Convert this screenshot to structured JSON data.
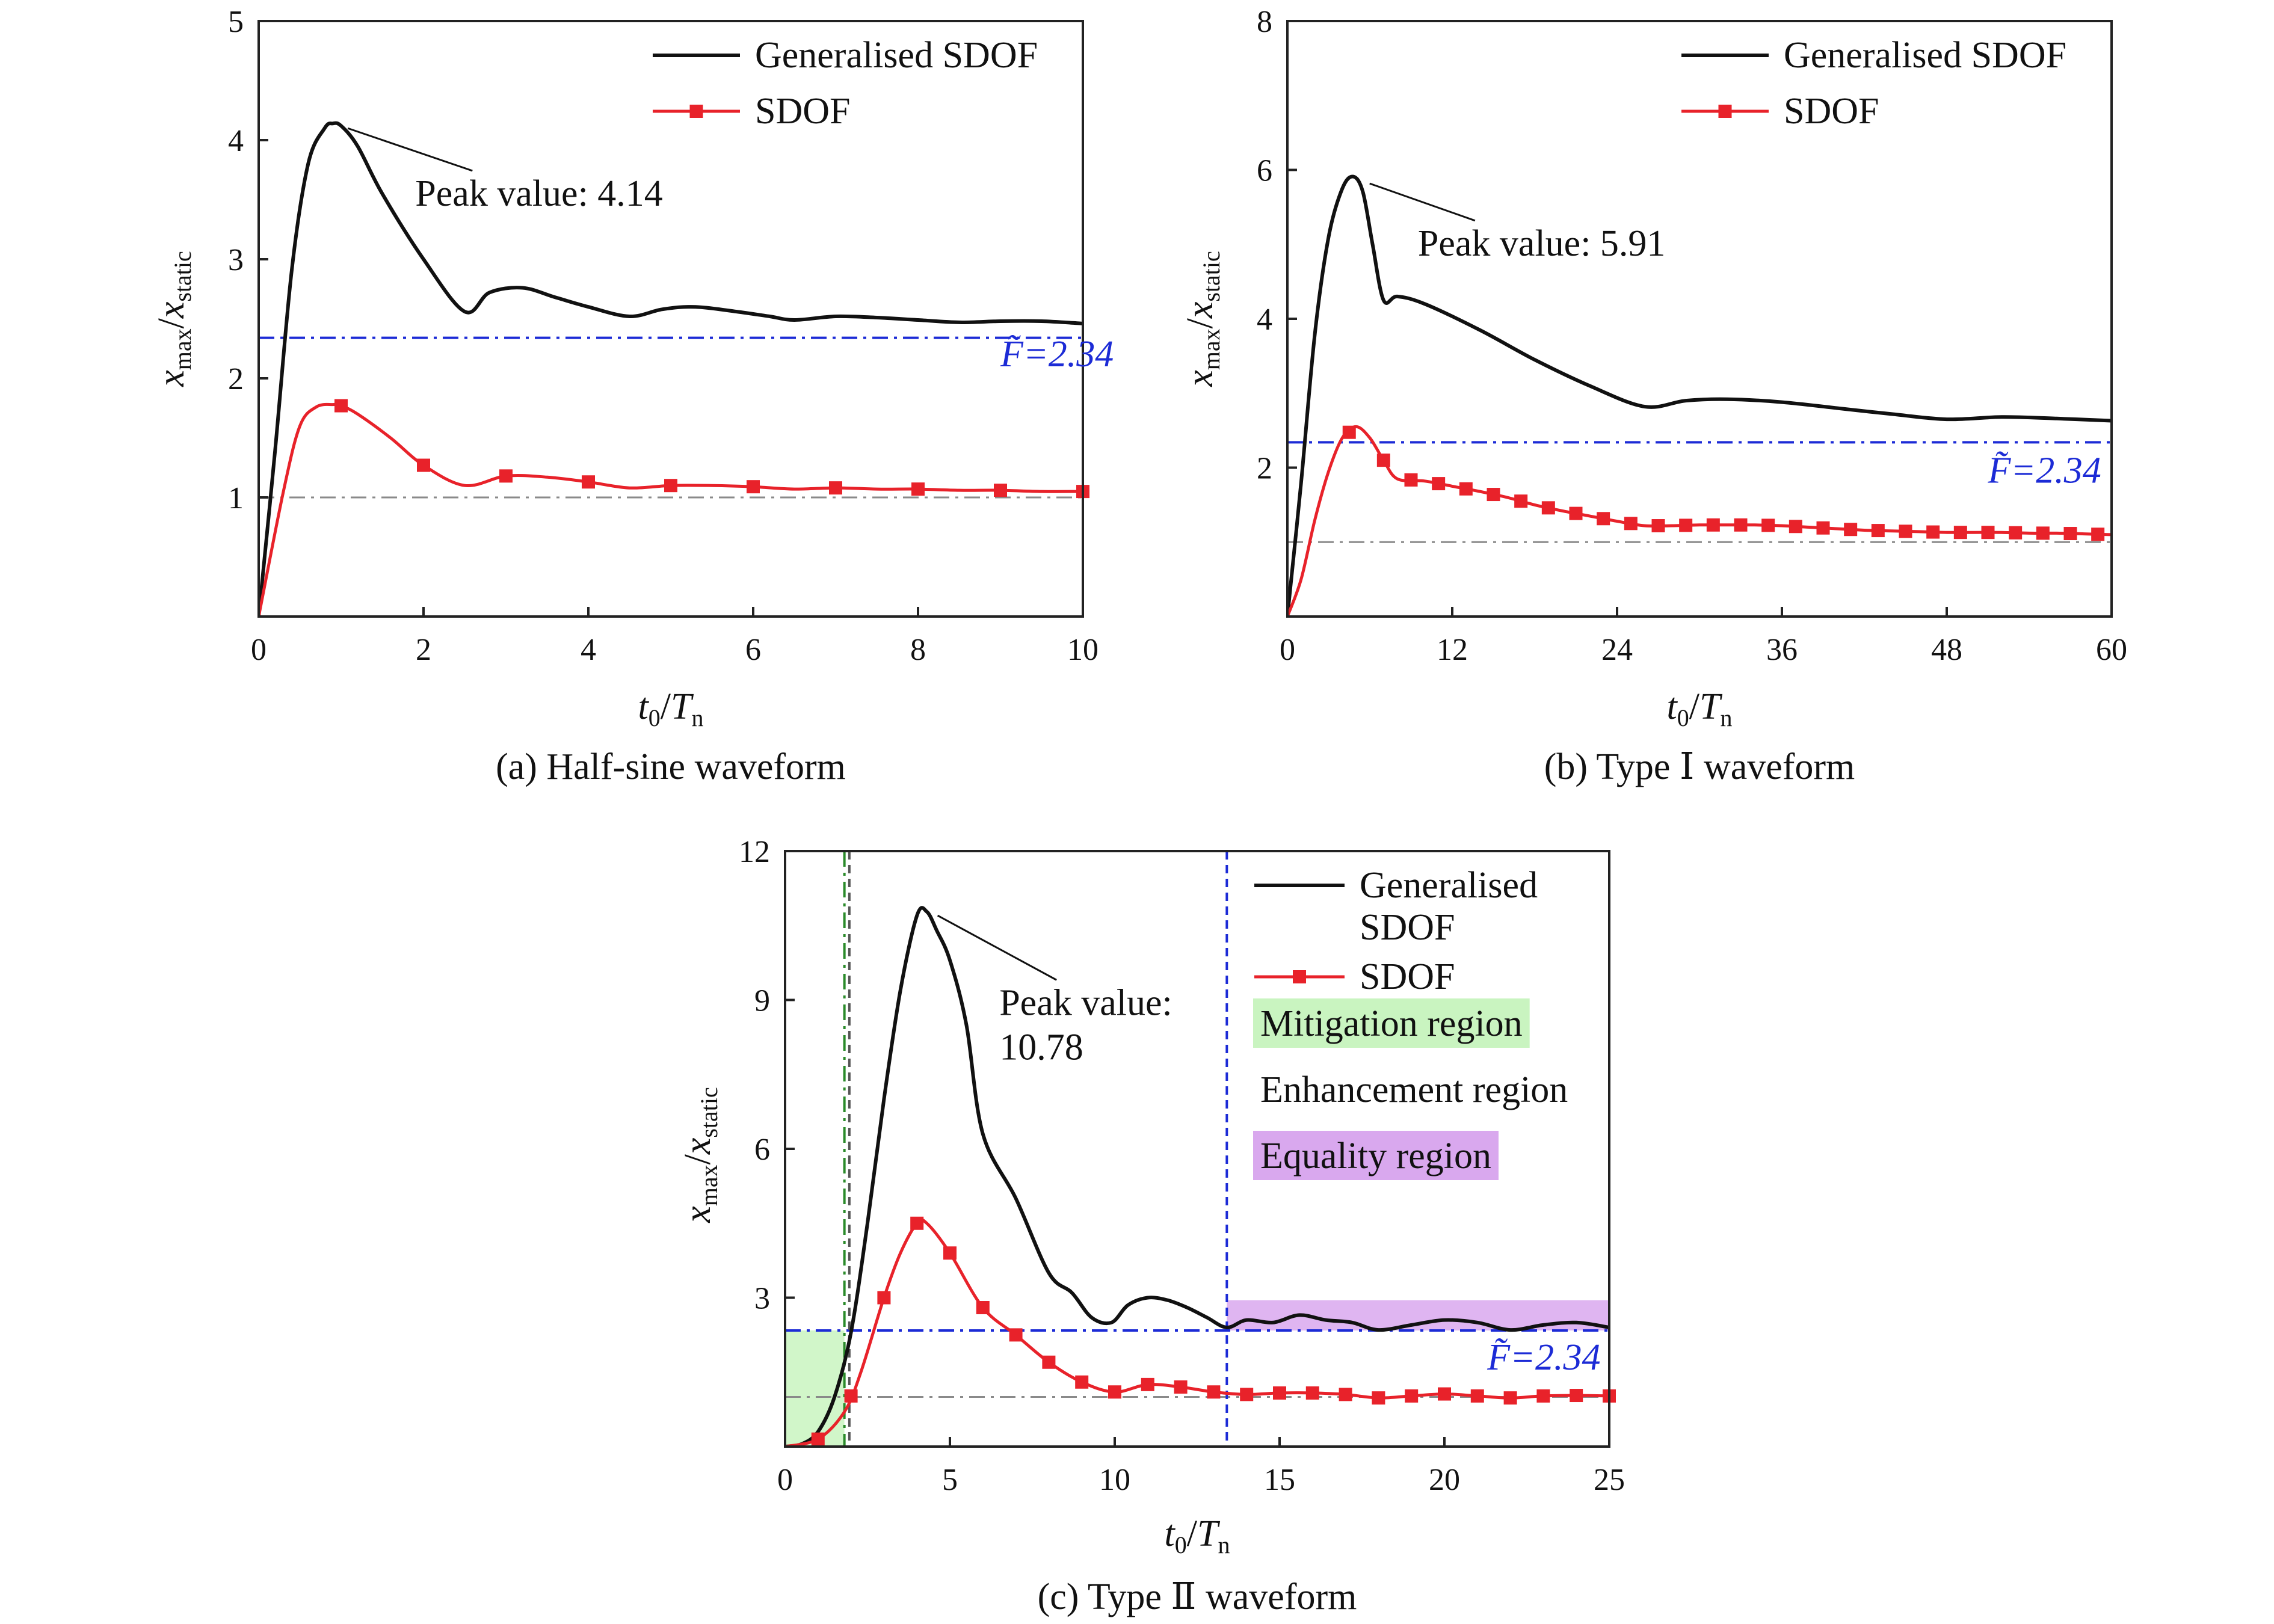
{
  "chart_data": [
    {
      "type": "line",
      "caption": "(a) Half-sine waveform",
      "xlabel": "t_0/T_n",
      "ylabel": "x_max/x_static",
      "xlim": [
        0,
        10
      ],
      "ylim": [
        0,
        5
      ],
      "xticks": [
        "0",
        "2",
        "4",
        "6",
        "8",
        "10"
      ],
      "yticks": [
        "1",
        "2",
        "3",
        "4",
        "5"
      ],
      "origin_label": "0",
      "legend_position": "top-right",
      "series": [
        {
          "name": "Generalised SDOF",
          "color": "#111111",
          "marker": "none",
          "x": [
            0,
            0.2,
            0.4,
            0.6,
            0.8,
            0.9,
            1.0,
            1.2,
            1.5,
            2.0,
            2.5,
            2.8,
            3.2,
            3.6,
            4.0,
            4.5,
            4.9,
            5.3,
            5.8,
            6.2,
            6.5,
            7.0,
            7.5,
            8.0,
            8.5,
            9.0,
            9.5,
            10.0
          ],
          "y": [
            0,
            1.4,
            2.9,
            3.8,
            4.1,
            4.14,
            4.12,
            3.95,
            3.55,
            3.0,
            2.56,
            2.72,
            2.76,
            2.68,
            2.6,
            2.52,
            2.58,
            2.6,
            2.56,
            2.52,
            2.49,
            2.52,
            2.51,
            2.49,
            2.47,
            2.48,
            2.48,
            2.46
          ]
        },
        {
          "name": "SDOF",
          "color": "#e8222a",
          "marker": "square",
          "x": [
            0,
            0.3,
            0.5,
            0.7,
            0.9,
            1.0,
            1.2,
            1.6,
            2.0,
            2.5,
            3.0,
            3.5,
            4.0,
            4.5,
            5.0,
            5.5,
            6.0,
            6.5,
            7.0,
            7.5,
            8.0,
            8.5,
            9.0,
            9.5,
            10.0
          ],
          "y": [
            0,
            1.05,
            1.6,
            1.76,
            1.78,
            1.77,
            1.7,
            1.5,
            1.27,
            1.1,
            1.18,
            1.17,
            1.13,
            1.08,
            1.1,
            1.1,
            1.09,
            1.07,
            1.08,
            1.07,
            1.07,
            1.06,
            1.06,
            1.05,
            1.05
          ],
          "marker_x": [
            1,
            2,
            3,
            4,
            5,
            6,
            7,
            8,
            9,
            10
          ]
        }
      ],
      "reference_lines": [
        {
          "y": 2.34,
          "color": "#1c2bd6",
          "style": "dashdot"
        },
        {
          "y": 1.0,
          "color": "#8a8a8a",
          "style": "dashdot"
        }
      ],
      "annotations": [
        {
          "text": "Peak value: 4.14",
          "point": [
            0.95,
            4.12
          ],
          "text_at": [
            1.9,
            3.45
          ]
        },
        {
          "text": "F͂=2.34",
          "color": "#1c2bd6",
          "text_at": [
            9.0,
            2.1
          ]
        }
      ]
    },
    {
      "type": "line",
      "caption": "(b) Type Ⅰ waveform",
      "xlabel": "t_0/T_n",
      "ylabel": "x_max/x_static",
      "xlim": [
        0,
        60
      ],
      "ylim": [
        0,
        8
      ],
      "xticks": [
        "0",
        "12",
        "24",
        "36",
        "48",
        "60"
      ],
      "yticks": [
        "2",
        "4",
        "6",
        "8"
      ],
      "origin_label": "0",
      "legend_position": "top-right",
      "series": [
        {
          "name": "Generalised SDOF",
          "color": "#111111",
          "marker": "none",
          "x": [
            0,
            1,
            2,
            3,
            4,
            4.8,
            5.5,
            6.2,
            7.0,
            8,
            10,
            14,
            18,
            22,
            26,
            29,
            32,
            36,
            40,
            44,
            48,
            52,
            56,
            60
          ],
          "y": [
            0,
            1.8,
            3.8,
            5.1,
            5.75,
            5.91,
            5.7,
            5.0,
            4.25,
            4.3,
            4.2,
            3.85,
            3.45,
            3.1,
            2.82,
            2.9,
            2.92,
            2.88,
            2.8,
            2.72,
            2.65,
            2.68,
            2.66,
            2.63
          ]
        },
        {
          "name": "SDOF",
          "color": "#e8222a",
          "marker": "square",
          "x": [
            0,
            1,
            2,
            3,
            4,
            5,
            6,
            7,
            8,
            10,
            12,
            14,
            16,
            18,
            20,
            22,
            24,
            26,
            28,
            30,
            32,
            34,
            36,
            38,
            40,
            42,
            44,
            46,
            48,
            50,
            52,
            54,
            56,
            58,
            60
          ],
          "y": [
            0,
            0.5,
            1.3,
            1.95,
            2.4,
            2.55,
            2.4,
            2.1,
            1.85,
            1.82,
            1.75,
            1.68,
            1.6,
            1.5,
            1.42,
            1.35,
            1.28,
            1.22,
            1.22,
            1.23,
            1.23,
            1.23,
            1.22,
            1.2,
            1.18,
            1.16,
            1.15,
            1.14,
            1.13,
            1.13,
            1.13,
            1.12,
            1.12,
            1.11,
            1.1
          ],
          "marker_x": [
            4.5,
            7,
            9,
            11,
            13,
            15,
            17,
            19,
            21,
            23,
            25,
            27,
            29,
            31,
            33,
            35,
            37,
            39,
            41,
            43,
            45,
            47,
            49,
            51,
            53,
            55,
            57,
            59
          ]
        }
      ],
      "reference_lines": [
        {
          "y": 2.34,
          "color": "#1c2bd6",
          "style": "dashdot"
        },
        {
          "y": 1.0,
          "color": "#8a8a8a",
          "style": "dashdot"
        }
      ],
      "annotations": [
        {
          "text": "Peak value: 5.91",
          "point": [
            5.2,
            5.85
          ],
          "text_at": [
            9.5,
            4.85
          ]
        },
        {
          "text": "F͂=2.34",
          "color": "#1c2bd6",
          "text_at": [
            51,
            1.8
          ]
        }
      ]
    },
    {
      "type": "line",
      "caption": "(c) Type Ⅱ waveform",
      "xlabel": "t_0/T_n",
      "ylabel": "x_max/x_static",
      "xlim": [
        0,
        25
      ],
      "ylim": [
        0,
        12
      ],
      "xticks": [
        "0",
        "5",
        "10",
        "15",
        "20",
        "25"
      ],
      "yticks": [
        "3",
        "6",
        "9",
        "12"
      ],
      "origin_label": "0",
      "legend_position": "top-right",
      "series": [
        {
          "name": "Generalised SDOF",
          "color": "#111111",
          "marker": "none",
          "x": [
            0,
            0.5,
            1.0,
            1.5,
            2.0,
            2.5,
            3.0,
            3.5,
            4.0,
            4.3,
            4.6,
            5.0,
            5.5,
            6.0,
            7.0,
            8.0,
            8.7,
            9.3,
            9.9,
            10.4,
            11.0,
            11.6,
            12.2,
            12.8,
            13.4,
            14.0,
            14.8,
            15.6,
            16.4,
            17.2,
            18.0,
            19.0,
            20.0,
            21.0,
            22.0,
            23.0,
            24.0,
            25.0
          ],
          "y": [
            0,
            0.05,
            0.3,
            1.0,
            2.3,
            4.5,
            7.0,
            9.2,
            10.7,
            10.78,
            10.4,
            9.8,
            8.5,
            6.3,
            5.0,
            3.5,
            3.1,
            2.6,
            2.5,
            2.85,
            3.0,
            2.95,
            2.8,
            2.6,
            2.4,
            2.55,
            2.5,
            2.65,
            2.55,
            2.5,
            2.35,
            2.45,
            2.55,
            2.5,
            2.35,
            2.45,
            2.5,
            2.4
          ]
        },
        {
          "name": "SDOF",
          "color": "#e8222a",
          "marker": "square",
          "x": [
            0,
            1.0,
            1.8,
            2.3,
            3.0,
            3.5,
            4.0,
            4.3,
            5.0,
            6.0,
            7.0,
            8.0,
            9.0,
            10.0,
            11.0,
            12.0,
            13.0,
            14.0,
            15.0,
            16.0,
            17.0,
            18.0,
            19.0,
            20.0,
            21.0,
            22.0,
            23.0,
            24.0,
            25.0
          ],
          "y": [
            0,
            0.15,
            0.7,
            1.5,
            3.0,
            3.9,
            4.5,
            4.5,
            3.9,
            2.8,
            2.25,
            1.7,
            1.3,
            1.1,
            1.25,
            1.2,
            1.1,
            1.05,
            1.08,
            1.08,
            1.05,
            0.98,
            1.02,
            1.06,
            1.02,
            0.98,
            1.02,
            1.03,
            1.02
          ],
          "marker_x": [
            1,
            2,
            3,
            4,
            5,
            6,
            7,
            8,
            9,
            10,
            11,
            12,
            13,
            14,
            15,
            16,
            17,
            18,
            19,
            20,
            21,
            22,
            23,
            24,
            25
          ]
        }
      ],
      "reference_lines": [
        {
          "y": 2.34,
          "color": "#1c2bd6",
          "style": "dashdot"
        },
        {
          "y": 1.0,
          "color": "#8a8a8a",
          "style": "dashdot"
        }
      ],
      "vertical_lines": [
        {
          "x": 1.8,
          "color": "#2a8a2a",
          "style": "dashdot"
        },
        {
          "x": 1.95,
          "color": "#555555",
          "style": "dashed"
        },
        {
          "x": 13.4,
          "color": "#1c2bd6",
          "style": "dashed"
        }
      ],
      "regions": [
        {
          "name": "Mitigation region",
          "x0": 0,
          "x1": 1.8,
          "y0": 0,
          "y1": 2.34,
          "color": "#c9f4c0"
        },
        {
          "name": "Equality region",
          "x0": 13.4,
          "x1": 25,
          "y0": 2.34,
          "y1": 2.95,
          "color": "#d9a8ee"
        }
      ],
      "region_labels": [
        {
          "text": "Mitigation region",
          "color": "#c9f4c0"
        },
        {
          "text": "Enhancement region",
          "color": "#ffffff"
        },
        {
          "text": "Equality region",
          "color": "#d9a8ee"
        }
      ],
      "annotations": [
        {
          "text": "Peak value:",
          "point": [
            4.3,
            10.75
          ],
          "text_at": [
            6.5,
            8.7
          ]
        },
        {
          "text": "10.78",
          "text_at": [
            6.5,
            7.8
          ]
        },
        {
          "text": "F͂=2.34",
          "color": "#1c2bd6",
          "text_at": [
            21.3,
            1.55
          ]
        }
      ]
    }
  ]
}
